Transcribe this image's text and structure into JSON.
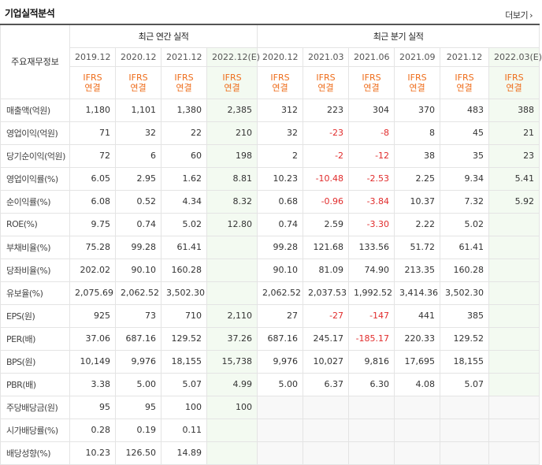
{
  "title": "기업실적분석",
  "more_label": "더보기",
  "header": {
    "row_label": "주요재무정보",
    "annual_title": "최근 연간 실적",
    "quarter_title": "최근 분기 실적",
    "annual_periods": [
      "2019.12",
      "2020.12",
      "2021.12",
      "2022.12(E)"
    ],
    "quarter_periods": [
      "2020.12",
      "2021.03",
      "2021.06",
      "2021.09",
      "2021.12",
      "2022.03(E)"
    ],
    "ifrs_line1": "IFRS",
    "ifrs_line2": "연결"
  },
  "rows": [
    {
      "label": "매출액(억원)",
      "values": [
        "1,180",
        "1,101",
        "1,380",
        "2,385",
        "312",
        "223",
        "304",
        "370",
        "483",
        "388"
      ]
    },
    {
      "label": "영업이익(억원)",
      "values": [
        "71",
        "32",
        "22",
        "210",
        "32",
        "-23",
        "-8",
        "8",
        "45",
        "21"
      ]
    },
    {
      "label": "당기순이익(억원)",
      "values": [
        "72",
        "6",
        "60",
        "198",
        "2",
        "-2",
        "-12",
        "38",
        "35",
        "23"
      ]
    },
    {
      "label": "영업이익률(%)",
      "values": [
        "6.05",
        "2.95",
        "1.62",
        "8.81",
        "10.23",
        "-10.48",
        "-2.53",
        "2.25",
        "9.34",
        "5.41"
      ]
    },
    {
      "label": "순이익률(%)",
      "values": [
        "6.08",
        "0.52",
        "4.34",
        "8.32",
        "0.68",
        "-0.96",
        "-3.84",
        "10.37",
        "7.32",
        "5.92"
      ]
    },
    {
      "label": "ROE(%)",
      "values": [
        "9.75",
        "0.74",
        "5.02",
        "12.80",
        "0.74",
        "2.59",
        "-3.30",
        "2.22",
        "5.02",
        ""
      ]
    },
    {
      "label": "부채비율(%)",
      "values": [
        "75.28",
        "99.28",
        "61.41",
        "",
        "99.28",
        "121.68",
        "133.56",
        "51.72",
        "61.41",
        ""
      ]
    },
    {
      "label": "당좌비율(%)",
      "values": [
        "202.02",
        "90.10",
        "160.28",
        "",
        "90.10",
        "81.09",
        "74.90",
        "213.35",
        "160.28",
        ""
      ]
    },
    {
      "label": "유보율(%)",
      "values": [
        "2,075.69",
        "2,062.52",
        "3,502.30",
        "",
        "2,062.52",
        "2,037.53",
        "1,992.52",
        "3,414.36",
        "3,502.30",
        ""
      ]
    },
    {
      "label": "EPS(원)",
      "values": [
        "925",
        "73",
        "710",
        "2,110",
        "27",
        "-27",
        "-147",
        "441",
        "385",
        ""
      ]
    },
    {
      "label": "PER(배)",
      "values": [
        "37.06",
        "687.16",
        "129.52",
        "37.26",
        "687.16",
        "245.17",
        "-185.17",
        "220.33",
        "129.52",
        ""
      ]
    },
    {
      "label": "BPS(원)",
      "values": [
        "10,149",
        "9,976",
        "18,155",
        "15,738",
        "9,976",
        "10,027",
        "9,816",
        "17,695",
        "18,155",
        ""
      ]
    },
    {
      "label": "PBR(배)",
      "values": [
        "3.38",
        "5.00",
        "5.07",
        "4.99",
        "5.00",
        "6.37",
        "6.30",
        "4.08",
        "5.07",
        ""
      ]
    },
    {
      "label": "주당배당금(원)",
      "values": [
        "95",
        "95",
        "100",
        "100",
        "",
        "",
        "",
        "",
        "",
        ""
      ]
    },
    {
      "label": "시가배당률(%)",
      "values": [
        "0.28",
        "0.19",
        "0.11",
        "",
        "",
        "",
        "",
        "",
        "",
        ""
      ]
    },
    {
      "label": "배당성향(%)",
      "values": [
        "10.23",
        "126.50",
        "14.89",
        "",
        "",
        "",
        "",
        "",
        "",
        ""
      ]
    }
  ]
}
